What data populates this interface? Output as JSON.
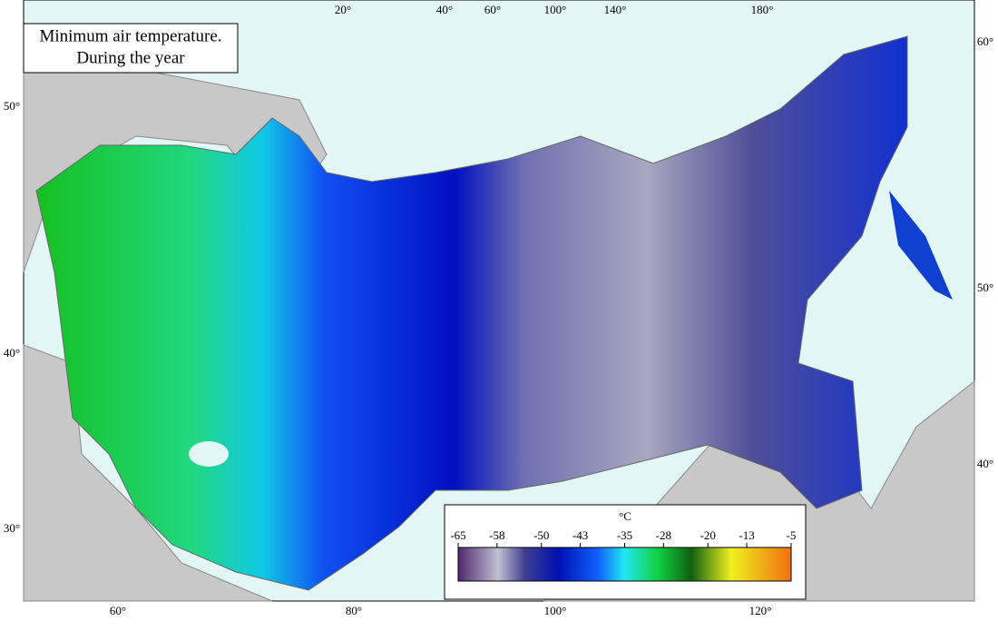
{
  "title": [
    "Minimum air temperature.",
    "During the year"
  ],
  "graticule": {
    "top": [
      "20°",
      "40°",
      "60°",
      "100°",
      "140°",
      "180°"
    ],
    "left": [
      "50°",
      "40°",
      "30°"
    ],
    "right": [
      "60°",
      "50°",
      "40°"
    ],
    "bottom": [
      "60°",
      "80°",
      "100°",
      "120°"
    ]
  },
  "legend": {
    "unit": "°C",
    "ticks": [
      -65,
      -58,
      -50,
      -43,
      -35,
      -28,
      -20,
      -13,
      -5
    ]
  }
}
